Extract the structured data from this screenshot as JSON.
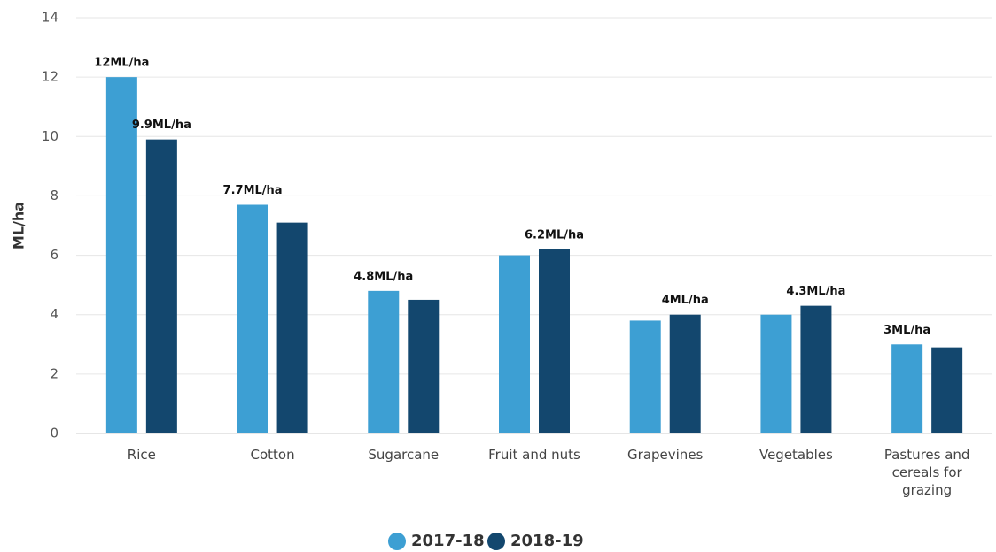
{
  "chart_data": {
    "type": "bar",
    "y_label": "ML/ha",
    "categories": [
      "Rice",
      "Cotton",
      "Sugarcane",
      "Fruit and nuts",
      "Grapevines",
      "Vegetables",
      "Pastures and cereals for grazing"
    ],
    "series": [
      {
        "name": "2017-18",
        "color": "#3d9fd3",
        "values": [
          12,
          7.7,
          4.8,
          6.0,
          3.8,
          4.0,
          3.0
        ],
        "value_labels": [
          "12ML/ha",
          "7.7ML/ha",
          "4.8ML/ha",
          null,
          null,
          null,
          "3ML/ha"
        ]
      },
      {
        "name": "2018-19",
        "color": "#13476e",
        "values": [
          9.9,
          7.1,
          4.5,
          6.2,
          4.0,
          4.3,
          2.9
        ],
        "value_labels": [
          "9.9ML/ha",
          null,
          null,
          "6.2ML/ha",
          "4ML/ha",
          "4.3ML/ha",
          null
        ]
      }
    ],
    "ylim": [
      0,
      14
    ],
    "yticks": [
      0,
      2,
      4,
      6,
      8,
      10,
      12,
      14
    ],
    "grid": true,
    "legend": "bottom"
  }
}
